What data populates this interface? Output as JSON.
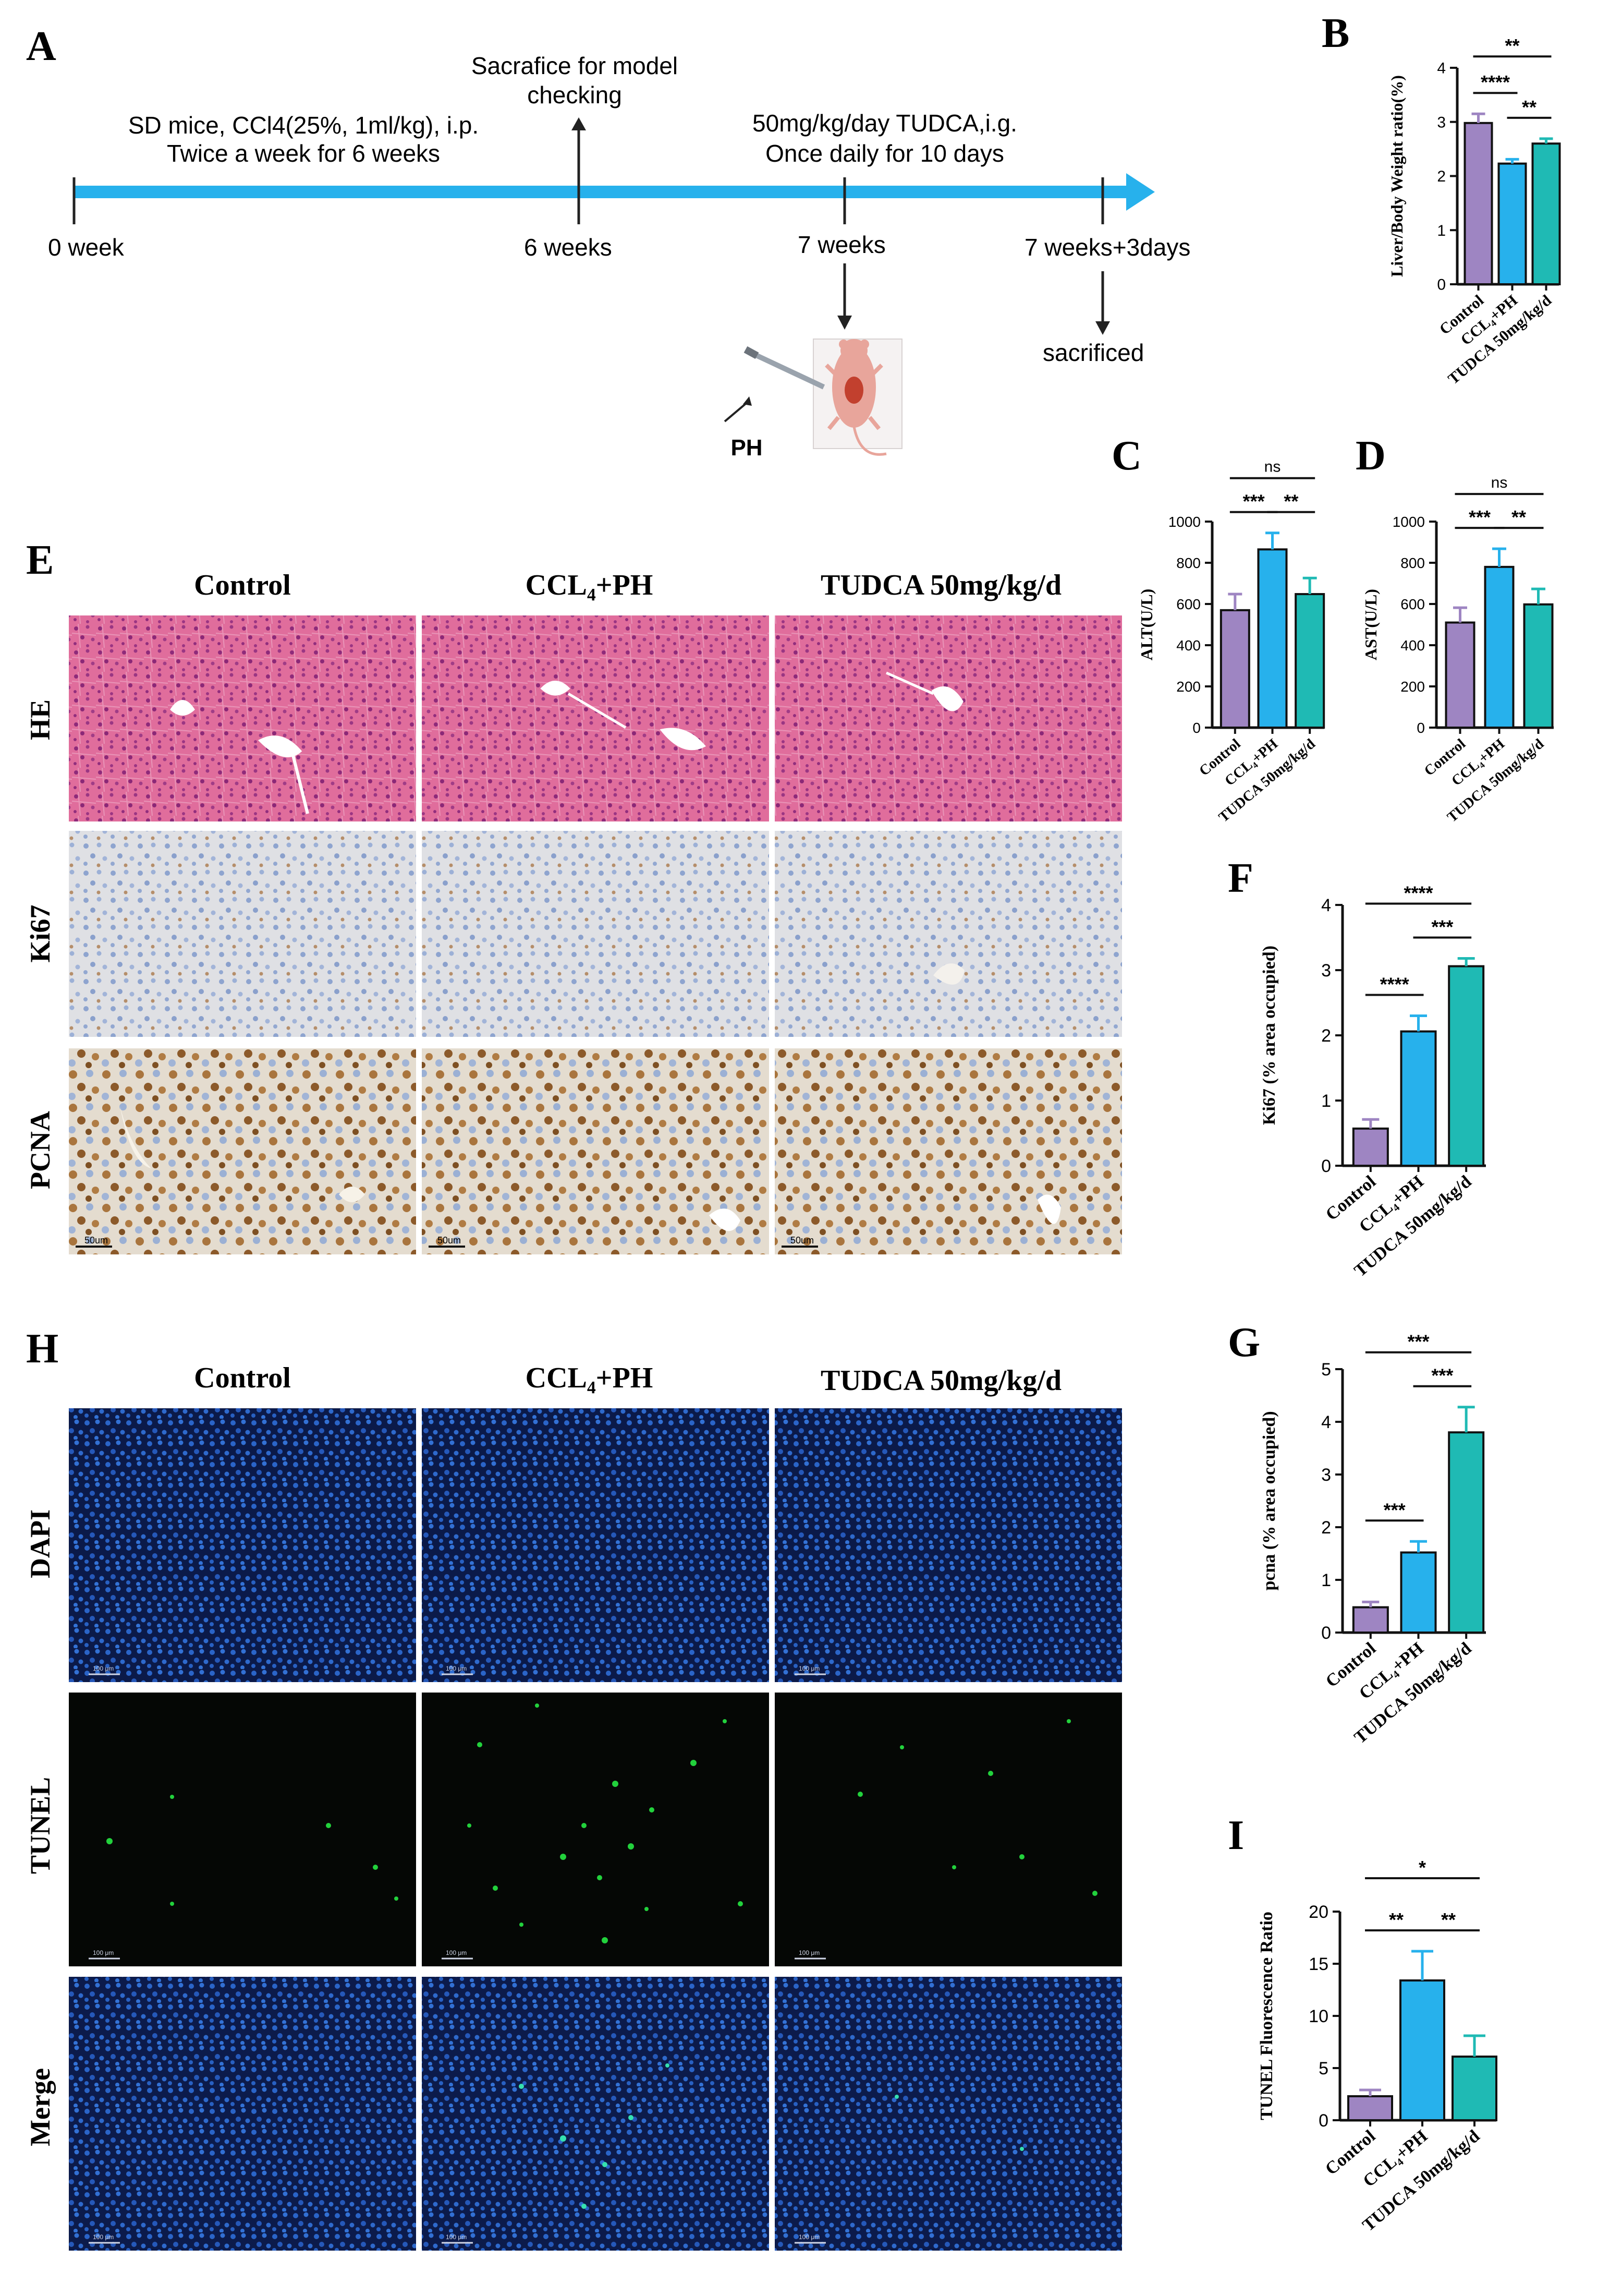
{
  "colors": {
    "control": "#9e85c2",
    "ccl4": "#27b1ec",
    "tudca": "#1fbab4",
    "timeline": "#27b1ec",
    "he": "#e06d9c",
    "ihc": "#e1dad0",
    "fluor": "#0b1a49",
    "tunel": "#050705"
  },
  "panelA": {
    "letter": "A",
    "week0": "0 week",
    "week6": "6 weeks",
    "week7": "7 weeks",
    "week73": "7 weeks+3days",
    "model_line1": "SD mice, CCl4(25%, 1ml/kg), i.p.",
    "model_line2": "Twice a week for 6 weeks",
    "check_line1": "Sacrafice for model",
    "check_line2": "checking",
    "tudca_line1": "50mg/kg/day TUDCA,i.g.",
    "tudca_line2": "Once daily for 10 days",
    "sacrificed": "sacrificed",
    "ph": "PH"
  },
  "micrographs": {
    "panelE": {
      "letter": "E",
      "columns": [
        "Control",
        "CCL₄+PH",
        "TUDCA 50mg/kg/d"
      ],
      "rows": [
        "HE",
        "Ki67",
        "PCNA"
      ],
      "pcna_scale": "50um"
    },
    "panelH": {
      "letter": "H",
      "columns": [
        "Control",
        "CCL₄+PH",
        "TUDCA 50mg/kg/d"
      ],
      "rows": [
        "DAPI",
        "TUNEL",
        "Merge"
      ],
      "scale": "100 μm"
    }
  },
  "chart_data": [
    {
      "id": "B",
      "letter": "B",
      "type": "bar",
      "categories": [
        "Control",
        "CCL₄+PH",
        "TUDCA 50mg/kg/d"
      ],
      "values": [
        2.98,
        2.23,
        2.6
      ],
      "errors": [
        0.17,
        0.08,
        0.09
      ],
      "ylabel": "Liver/Body Weight ratio(%)",
      "ylim": [
        0,
        4
      ],
      "yticks": [
        0,
        1,
        2,
        3,
        4
      ],
      "significance": [
        {
          "from": 0,
          "to": 1,
          "label": "****"
        },
        {
          "from": 1,
          "to": 2,
          "label": "**"
        },
        {
          "from": 0,
          "to": 2,
          "label": "**"
        }
      ]
    },
    {
      "id": "C",
      "letter": "C",
      "type": "bar",
      "categories": [
        "Control",
        "CCL₄+PH",
        "TUDCA 50mg/kg/d"
      ],
      "values": [
        570,
        865,
        648
      ],
      "errors": [
        78,
        80,
        78
      ],
      "ylabel": "ALT(U/L)",
      "ylim": [
        0,
        1000
      ],
      "yticks": [
        0,
        200,
        400,
        600,
        800,
        1000
      ],
      "significance": [
        {
          "from": 0,
          "to": 1,
          "label": "***"
        },
        {
          "from": 1,
          "to": 2,
          "label": "**"
        },
        {
          "from": 0,
          "to": 2,
          "label": "ns"
        }
      ]
    },
    {
      "id": "D",
      "letter": "D",
      "type": "bar",
      "categories": [
        "Control",
        "CCL₄+PH",
        "TUDCA 50mg/kg/d"
      ],
      "values": [
        510,
        780,
        598
      ],
      "errors": [
        72,
        88,
        75
      ],
      "ylabel": "AST(U/L)",
      "ylim": [
        0,
        1000
      ],
      "yticks": [
        0,
        200,
        400,
        600,
        800,
        1000
      ],
      "significance": [
        {
          "from": 0,
          "to": 1,
          "label": "***"
        },
        {
          "from": 1,
          "to": 2,
          "label": "**"
        },
        {
          "from": 0,
          "to": 2,
          "label": "ns"
        }
      ]
    },
    {
      "id": "F",
      "letter": "F",
      "type": "bar",
      "categories": [
        "Control",
        "CCL₄+PH",
        "TUDCA 50mg/kg/d"
      ],
      "values": [
        0.57,
        2.06,
        3.06
      ],
      "errors": [
        0.14,
        0.24,
        0.12
      ],
      "ylabel": "Ki67 (% area occupied)",
      "ylim": [
        0,
        4
      ],
      "yticks": [
        0,
        1,
        2,
        3,
        4
      ],
      "significance": [
        {
          "from": 0,
          "to": 1,
          "label": "****"
        },
        {
          "from": 1,
          "to": 2,
          "label": "***"
        },
        {
          "from": 0,
          "to": 2,
          "label": "****"
        }
      ]
    },
    {
      "id": "G",
      "letter": "G",
      "type": "bar",
      "categories": [
        "Control",
        "CCL₄+PH",
        "TUDCA 50mg/kg/d"
      ],
      "values": [
        0.48,
        1.52,
        3.8
      ],
      "errors": [
        0.1,
        0.21,
        0.48
      ],
      "ylabel": "pcna (% area occupied)",
      "ylim": [
        0,
        5
      ],
      "yticks": [
        0,
        1,
        2,
        3,
        4,
        5
      ],
      "significance": [
        {
          "from": 0,
          "to": 1,
          "label": "***"
        },
        {
          "from": 1,
          "to": 2,
          "label": "***"
        },
        {
          "from": 0,
          "to": 2,
          "label": "***"
        }
      ]
    },
    {
      "id": "I",
      "letter": "I",
      "type": "bar",
      "categories": [
        "Control",
        "CCL₄+PH",
        "TUDCA 50mg/kg/d"
      ],
      "values": [
        2.3,
        13.4,
        6.1
      ],
      "errors": [
        0.6,
        2.8,
        2.0
      ],
      "ylabel": "TUNEL Fluorescence Ratio",
      "ylim": [
        0,
        20
      ],
      "yticks": [
        0,
        5,
        10,
        15,
        20
      ],
      "significance": [
        {
          "from": 0,
          "to": 1,
          "label": "**"
        },
        {
          "from": 1,
          "to": 2,
          "label": "**"
        },
        {
          "from": 0,
          "to": 2,
          "label": "*"
        }
      ]
    }
  ]
}
